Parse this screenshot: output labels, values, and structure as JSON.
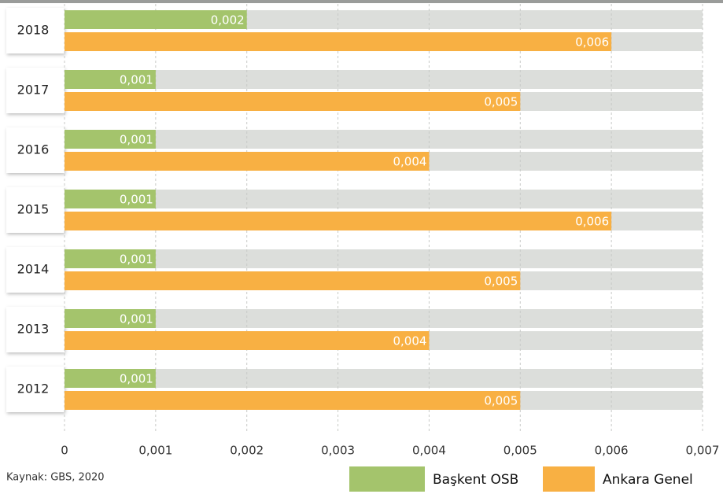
{
  "chart_data": {
    "type": "bar",
    "orientation": "horizontal",
    "categories": [
      "2018",
      "2017",
      "2016",
      "2015",
      "2014",
      "2013",
      "2012"
    ],
    "series": [
      {
        "name": "Başkent OSB",
        "color": "#a4c46c",
        "values": [
          0.002,
          0.001,
          0.001,
          0.001,
          0.001,
          0.001,
          0.001
        ],
        "value_labels": [
          "0,002",
          "0,001",
          "0,001",
          "0,001",
          "0,001",
          "0,001",
          "0,001"
        ]
      },
      {
        "name": "Ankara Genel",
        "color": "#f8b043",
        "values": [
          0.006,
          0.005,
          0.004,
          0.006,
          0.005,
          0.004,
          0.005
        ],
        "value_labels": [
          "0,006",
          "0,005",
          "0,004",
          "0,006",
          "0,005",
          "0,004",
          "0,005"
        ]
      }
    ],
    "xlim": [
      0,
      0.007
    ],
    "xticks": [
      0,
      {
        "value": 0.001,
        "label": "0,001"
      },
      {
        "value": 0.002,
        "label": "0,002"
      },
      {
        "value": 0.003,
        "label": "0,003"
      },
      {
        "value": 0.004,
        "label": "0,004"
      },
      {
        "value": 0.005,
        "label": "0,005"
      },
      {
        "value": 0.006,
        "label": "0,006"
      },
      {
        "value": 0.007,
        "label": "0,007"
      }
    ],
    "grid": true,
    "source": "Kaynak: GBS, 2020",
    "legend": "bottom-right"
  }
}
